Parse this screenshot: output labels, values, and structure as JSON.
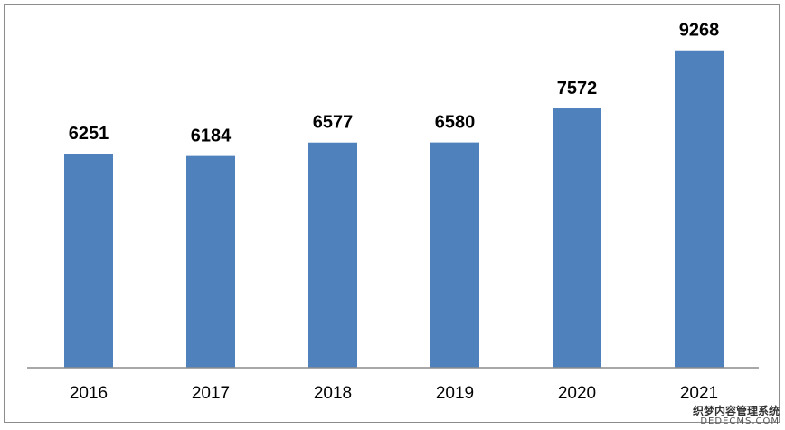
{
  "chart_data": {
    "type": "bar",
    "categories": [
      "2016",
      "2017",
      "2018",
      "2019",
      "2020",
      "2021"
    ],
    "values": [
      6251,
      6184,
      6577,
      6580,
      7572,
      9268
    ],
    "title": "",
    "xlabel": "",
    "ylabel": "",
    "ylim": [
      0,
      10000
    ],
    "grid": false,
    "legend": "none",
    "bar_color": "#4f81bd",
    "axis_color": "#8c8c8c"
  },
  "watermark": {
    "line1": "织梦内容管理系统",
    "line2": "DEDECMS.COM"
  }
}
